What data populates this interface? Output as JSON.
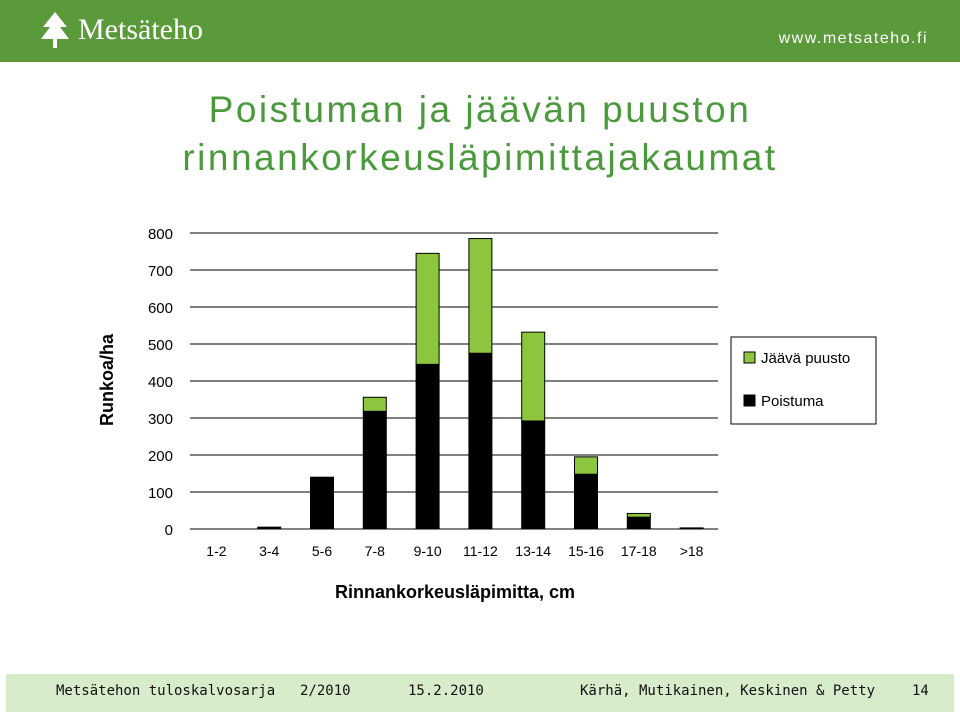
{
  "header": {
    "logo_text": "Metsäteho",
    "logo_icon": "tree-icon",
    "url": "www.metsateho.fi",
    "background": "#5b9a3a"
  },
  "slide_title": {
    "line1": "Poistuman ja jäävän puuston",
    "line2": "rinnankorkeusläpimittajakaumat",
    "color": "#4a9a3c"
  },
  "chart_data": {
    "type": "bar",
    "stacked": true,
    "xlabel": "Rinnankorkeusläpimitta, cm",
    "ylabel": "Runkoa/ha",
    "ylim": [
      0,
      800
    ],
    "yticks": [
      0,
      100,
      200,
      300,
      400,
      500,
      600,
      700,
      800
    ],
    "grid": true,
    "legend_position": "right",
    "categories": [
      "1-2",
      "3-4",
      "5-6",
      "7-8",
      "9-10",
      "11-12",
      "13-14",
      "15-16",
      "17-18",
      ">18"
    ],
    "series": [
      {
        "name": "Poistuma",
        "color": "#000000",
        "values": [
          0,
          5,
          140,
          318,
          445,
          475,
          292,
          148,
          32,
          3
        ]
      },
      {
        "name": "Jäävä puusto",
        "color": "#8cc63f",
        "values": [
          0,
          0,
          0,
          38,
          300,
          310,
          240,
          47,
          10,
          0
        ]
      }
    ],
    "legend": [
      {
        "name": "Jäävä puusto",
        "color": "#8cc63f"
      },
      {
        "name": "Poistuma",
        "color": "#000000"
      }
    ]
  },
  "footer": {
    "series": "Metsätehon tuloskalvosarja",
    "number": "2/2010",
    "date": "15.2.2010",
    "authors": "Kärhä, Mutikainen, Keskinen & Petty",
    "page": "14",
    "background": "#d7ecca"
  }
}
